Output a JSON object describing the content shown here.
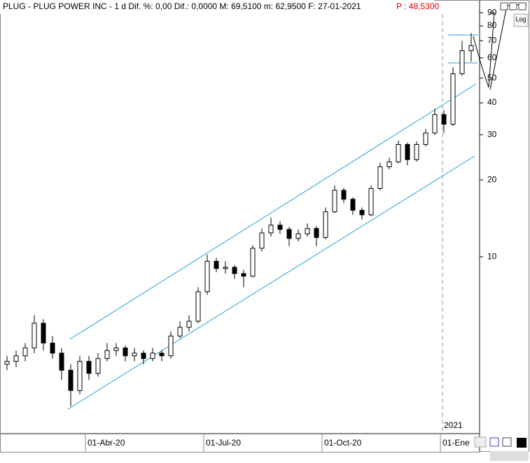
{
  "chart_data": {
    "type": "candlestick",
    "title": "PLUG - PLUG POWER INC -  1 d Dif. %: 0,00 Dif.: 0,0000 M: 69,5100 m: 62,9500 F: 27-01-2021",
    "subtitle": "P : 48,5300",
    "annotations": [
      "2021"
    ],
    "scale_button": "Log",
    "log_scale": true,
    "up_color": "#ffffff",
    "down_color": "#000000",
    "line_color": "#000000",
    "channel_color": "#1fa3d6",
    "categories": [
      null,
      null,
      null,
      null,
      null,
      null,
      null,
      null,
      null,
      "01-Abr-20",
      null,
      null,
      null,
      null,
      null,
      null,
      null,
      null,
      null,
      null,
      null,
      null,
      "01-Jul-20",
      null,
      null,
      null,
      null,
      null,
      null,
      null,
      null,
      null,
      null,
      null,
      null,
      "01-Oct-20",
      null,
      null,
      null,
      null,
      null,
      null,
      null,
      null,
      null,
      null,
      null,
      null,
      "01-Ene",
      null,
      null,
      null
    ],
    "open": [
      3.8,
      3.9,
      4.1,
      4.4,
      5.5,
      4.6,
      4.2,
      3.6,
      3.0,
      3.9,
      3.5,
      4.0,
      4.3,
      4.4,
      4.1,
      4.2,
      4.0,
      4.2,
      4.1,
      4.9,
      5.3,
      5.6,
      7.3,
      9.6,
      9.0,
      9.1,
      8.6,
      8.4,
      10.8,
      12.4,
      13.3,
      12.8,
      11.8,
      12.3,
      12.9,
      11.9,
      15.0,
      18.2,
      16.8,
      15.2,
      14.6,
      18.5,
      22.5,
      23.5,
      27.5,
      24.0,
      27.5,
      30.5,
      36.0,
      33.0,
      52.0,
      64.0
    ],
    "high": [
      4.1,
      4.3,
      4.6,
      5.9,
      5.7,
      4.9,
      4.4,
      3.8,
      4.1,
      4.1,
      4.2,
      4.6,
      4.6,
      4.5,
      4.4,
      4.3,
      4.4,
      4.3,
      5.1,
      5.6,
      5.9,
      7.6,
      10.2,
      9.9,
      9.6,
      9.3,
      8.9,
      11.1,
      12.9,
      14.2,
      13.8,
      13.1,
      12.8,
      13.5,
      13.2,
      15.6,
      19.0,
      18.6,
      17.1,
      15.6,
      19.0,
      23.3,
      24.4,
      28.5,
      28.0,
      28.3,
      31.6,
      38.0,
      37.5,
      55.0,
      70.0,
      75.0
    ],
    "low": [
      3.6,
      3.7,
      3.9,
      4.2,
      4.3,
      4.0,
      3.3,
      2.6,
      2.9,
      3.3,
      3.4,
      3.9,
      4.1,
      3.9,
      3.9,
      3.8,
      3.9,
      3.9,
      4.0,
      4.8,
      5.1,
      5.5,
      7.1,
      8.7,
      8.6,
      8.2,
      7.6,
      8.3,
      10.5,
      12.0,
      12.3,
      11.0,
      11.5,
      12.0,
      11.0,
      11.7,
      14.8,
      16.2,
      14.6,
      14.0,
      14.4,
      18.2,
      22.0,
      23.2,
      22.8,
      23.6,
      27.0,
      30.0,
      30.5,
      32.5,
      51.0,
      58.0
    ],
    "close": [
      3.9,
      4.1,
      4.4,
      5.5,
      4.6,
      4.2,
      3.6,
      3.0,
      3.9,
      3.5,
      4.0,
      4.3,
      4.4,
      4.1,
      4.2,
      4.0,
      4.2,
      4.1,
      4.9,
      5.3,
      5.6,
      7.3,
      9.6,
      9.0,
      9.1,
      8.6,
      8.4,
      10.8,
      12.4,
      13.3,
      12.8,
      11.8,
      12.3,
      12.9,
      11.9,
      15.0,
      18.2,
      16.8,
      15.2,
      14.6,
      18.5,
      22.5,
      23.5,
      27.5,
      24.0,
      27.5,
      30.5,
      36.0,
      33.0,
      52.0,
      64.0,
      67.0
    ],
    "ylim": [
      2.06,
      91.9
    ],
    "yticks": [
      10,
      20,
      30,
      40,
      50,
      60,
      70,
      80,
      90
    ],
    "grid": false
  }
}
